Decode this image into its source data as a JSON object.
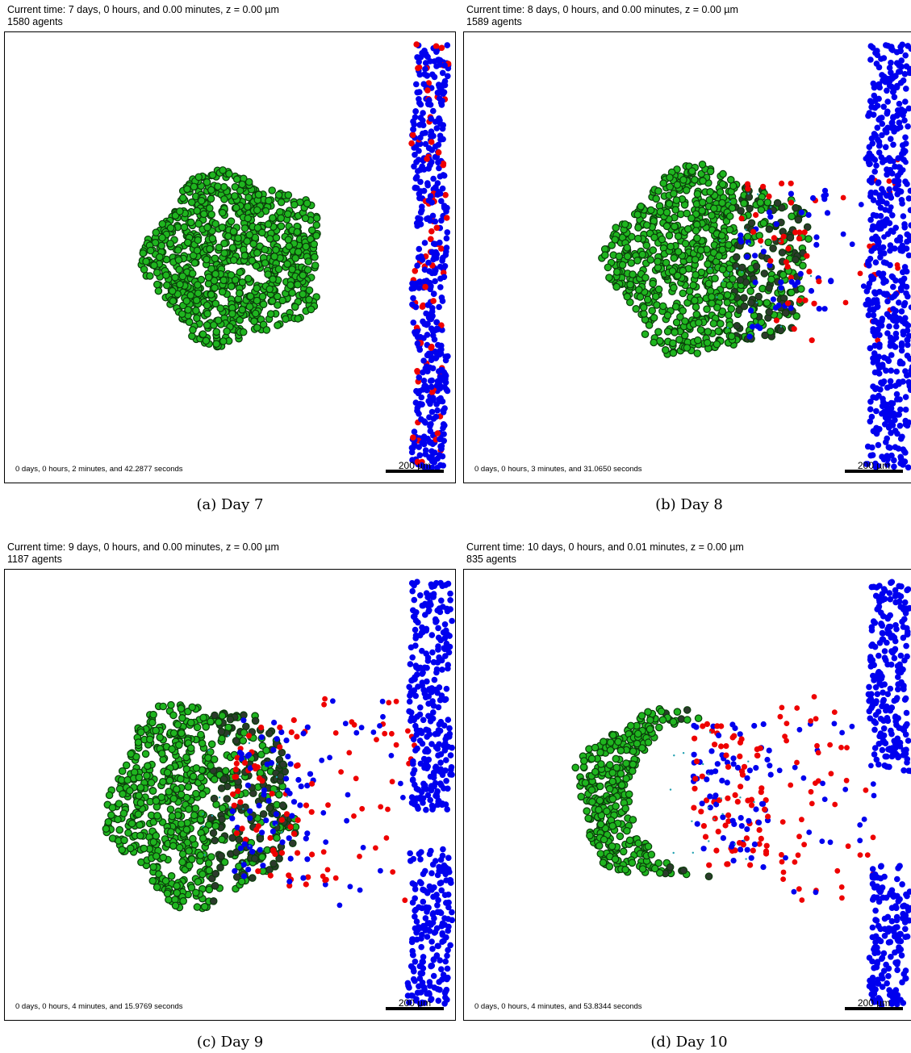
{
  "panels": [
    {
      "id": "a",
      "header": "Current time: 7 days, 0 hours, and 0.00 minutes, z = 0.00 µm",
      "agents": "1580 agents",
      "elapsed": "0 days, 0 hours, 2 minutes, and 42.2877 seconds",
      "scale": "200 µm",
      "caption": "(a)  Day 7"
    },
    {
      "id": "b",
      "header": "Current time: 8 days, 0 hours, and 0.00 minutes, z = 0.00 µm",
      "agents": "1589 agents",
      "elapsed": "0 days, 0 hours, 3 minutes, and 31.0650 seconds",
      "scale": "200 µm",
      "caption": "(b)  Day 8"
    },
    {
      "id": "c",
      "header": "Current time: 9 days, 0 hours, and 0.00 minutes, z = 0.00 µm",
      "agents": "1187 agents",
      "elapsed": "0 days, 0 hours, 4 minutes, and 15.9769 seconds",
      "scale": "200 µm",
      "caption": "(c)  Day 9"
    },
    {
      "id": "d",
      "header": "Current time: 10 days, 0 hours, and 0.01 minutes, z = 0.00 µm",
      "agents": "835 agents",
      "elapsed": "0 days, 0 hours, 4 minutes, and 53.8344 seconds",
      "scale": "200 µm",
      "caption": "(d)  Day 10"
    }
  ],
  "colors": {
    "tumor_cell": "#1fb51f",
    "tumor_cell_edge": "#0a3d0a",
    "dying_cell": "#2c3a2c",
    "immune_cell_blue": "#0000ee",
    "immune_cell_red": "#ee0000",
    "small_particle": "#1fa0b0"
  }
}
